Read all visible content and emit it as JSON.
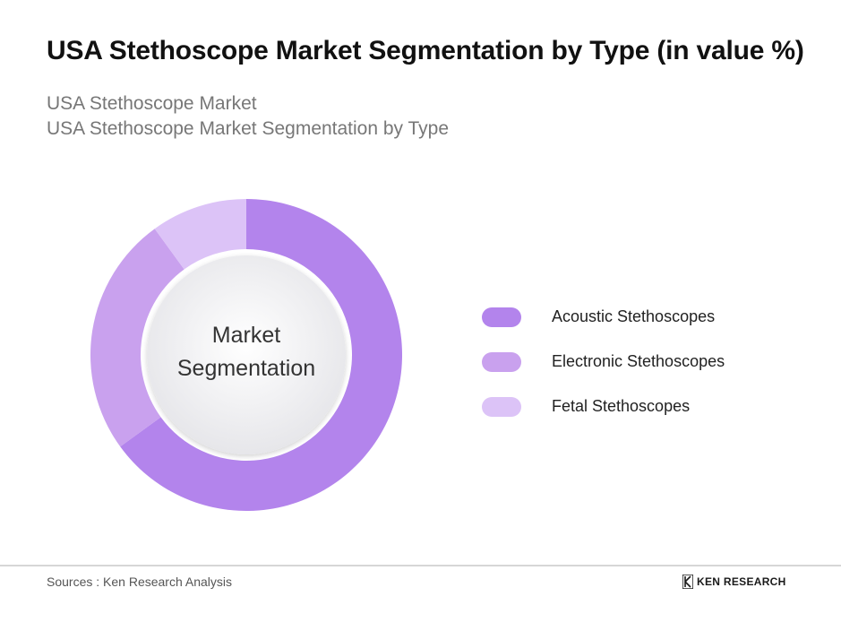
{
  "title": "USA Stethoscope Market Segmentation by Type (in value %)",
  "subtitles": [
    "USA Stethoscope Market",
    "USA Stethoscope Market Segmentation by Type"
  ],
  "chart_data": {
    "type": "pie",
    "variant": "donut",
    "center_label": [
      "Market",
      "Segmentation"
    ],
    "categories": [
      "Acoustic Stethoscopes",
      "Electronic Stethoscopes",
      "Fetal Stethoscopes"
    ],
    "values": [
      65,
      25,
      10
    ],
    "colors": [
      "#b384ec",
      "#c9a1ee",
      "#dcc3f7"
    ],
    "legend_position": "right"
  },
  "footer": {
    "source": "Sources : Ken Research Analysis",
    "logo_text": "KEN RESEARCH"
  }
}
